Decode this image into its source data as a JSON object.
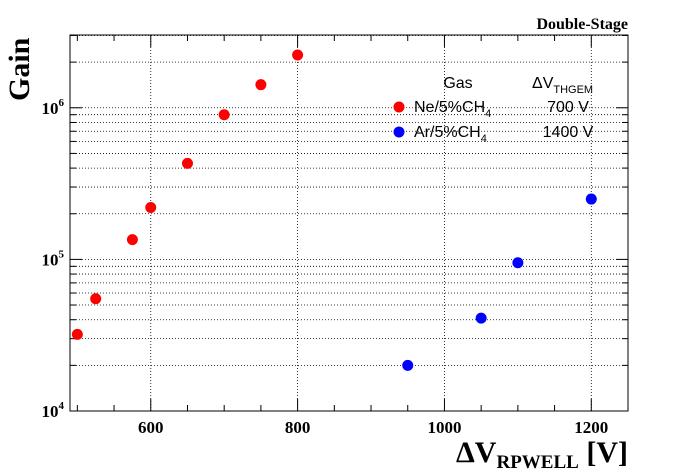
{
  "chart_data": {
    "type": "scatter",
    "title": "Double-Stage",
    "xlabel": "ΔV",
    "xlabel_sub": "RPWELL",
    "xlabel_unit": " [V]",
    "ylabel": "Gain",
    "xlim": [
      490,
      1250
    ],
    "ylim_log10": [
      4.0,
      6.48
    ],
    "x_ticks": [
      {
        "value": 600,
        "label": "600"
      },
      {
        "value": 800,
        "label": "800"
      },
      {
        "value": 1000,
        "label": "1000"
      },
      {
        "value": 1200,
        "label": "1200"
      }
    ],
    "y_ticks": [
      {
        "exp": 4,
        "base": "10",
        "sup": "4"
      },
      {
        "exp": 5,
        "base": "10",
        "sup": "5"
      },
      {
        "exp": 6,
        "base": "10",
        "sup": "6"
      }
    ],
    "grid": true,
    "legend_placement": "top-right",
    "legend_headers": {
      "gas": "Gas",
      "dv": "ΔV",
      "dv_sub": "THGEM"
    },
    "series": [
      {
        "name": "Ne/5%CH",
        "name_sub": "4",
        "dv_thgem": "700 V",
        "color": "#ff0000",
        "x": [
          500,
          525,
          575,
          600,
          650,
          700,
          750,
          800
        ],
        "y": [
          32000,
          55000,
          135000,
          220000,
          430000,
          900000,
          1420000,
          2230000
        ]
      },
      {
        "name": "Ar/5%CH",
        "name_sub": "4",
        "dv_thgem": "1400 V",
        "color": "#0000ff",
        "x": [
          950,
          1050,
          1100,
          1200
        ],
        "y": [
          20000,
          41000,
          95000,
          250000
        ]
      }
    ]
  }
}
